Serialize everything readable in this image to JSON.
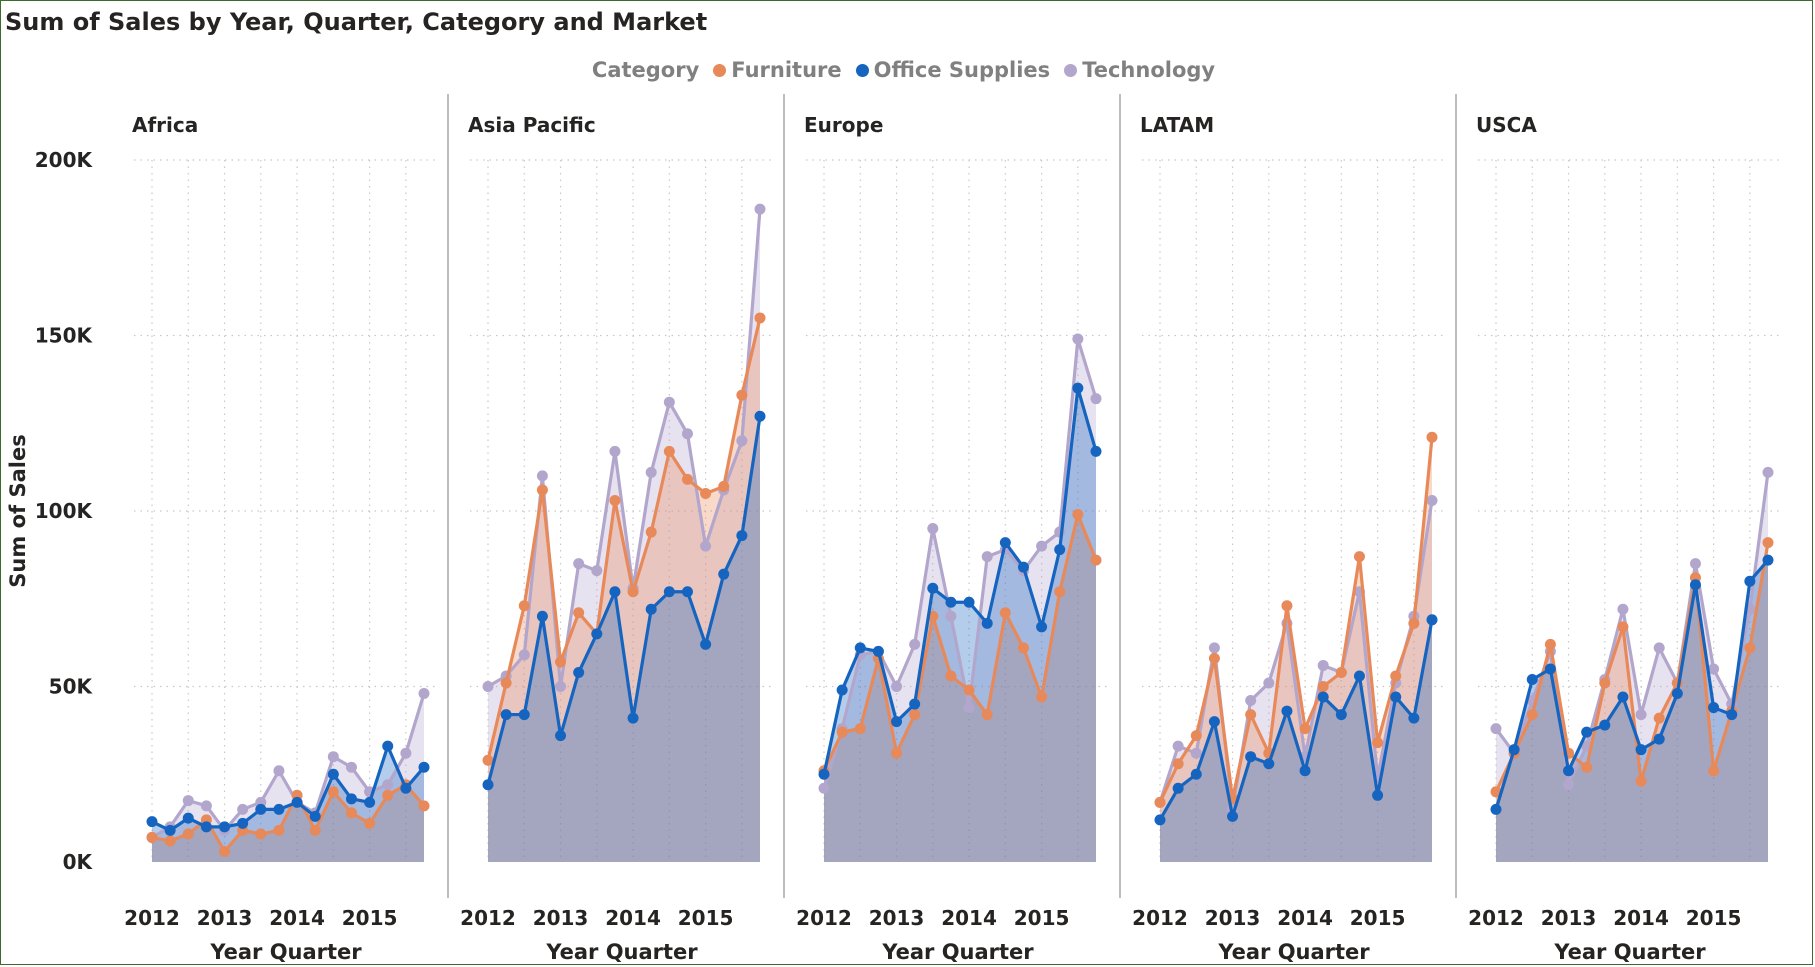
{
  "title": "Sum of Sales by Year, Quarter, Category and Market",
  "chart_data": {
    "type": "area",
    "title": "Sum of Sales by Year, Quarter, Category and Market",
    "xlabel": "Year Quarter",
    "ylabel": "Sum of Sales",
    "ylim": [
      0,
      200000
    ],
    "y_ticks": [
      {
        "value": 0,
        "label": "0K"
      },
      {
        "value": 50000,
        "label": "50K"
      },
      {
        "value": 100000,
        "label": "100K"
      },
      {
        "value": 150000,
        "label": "150K"
      },
      {
        "value": 200000,
        "label": "200K"
      }
    ],
    "x_tick_labels": [
      "2012",
      "2013",
      "2014",
      "2015"
    ],
    "quarters": [
      "2012 Q1",
      "2012 Q2",
      "2012 Q3",
      "2012 Q4",
      "2013 Q1",
      "2013 Q2",
      "2013 Q3",
      "2013 Q4",
      "2014 Q1",
      "2014 Q2",
      "2014 Q3",
      "2014 Q4",
      "2015 Q1",
      "2015 Q2",
      "2015 Q3",
      "2015 Q4"
    ],
    "legend": {
      "title": "Category",
      "position": "top-center"
    },
    "grid": true,
    "series_meta": [
      {
        "name": "Furniture",
        "color": "#E8895A"
      },
      {
        "name": "Office Supplies",
        "color": "#1565C0"
      },
      {
        "name": "Technology",
        "color": "#B3A6CC"
      }
    ],
    "panels": [
      {
        "market": "Africa",
        "series": [
          {
            "name": "Furniture",
            "values": [
              7000,
              6000,
              8000,
              12000,
              3000,
              9000,
              8000,
              9000,
              19000,
              9000,
              20000,
              14000,
              11000,
              19000,
              22000,
              16000
            ]
          },
          {
            "name": "Office Supplies",
            "values": [
              11500,
              9000,
              12500,
              10000,
              10000,
              11000,
              15000,
              15000,
              17000,
              13000,
              25000,
              18000,
              17000,
              33000,
              21000,
              27000
            ]
          },
          {
            "name": "Technology",
            "values": [
              7000,
              10000,
              17500,
              16000,
              9000,
              15000,
              17000,
              26000,
              17000,
              14000,
              30000,
              27000,
              20000,
              22000,
              31000,
              48000
            ]
          }
        ]
      },
      {
        "market": "Asia Pacific",
        "series": [
          {
            "name": "Furniture",
            "values": [
              29000,
              51000,
              73000,
              106000,
              57000,
              71000,
              65000,
              103000,
              77000,
              94000,
              117000,
              109000,
              105000,
              107000,
              133000,
              155000
            ]
          },
          {
            "name": "Office Supplies",
            "values": [
              22000,
              42000,
              42000,
              70000,
              36000,
              54000,
              65000,
              77000,
              41000,
              72000,
              77000,
              77000,
              62000,
              82000,
              93000,
              127000
            ]
          },
          {
            "name": "Technology",
            "values": [
              50000,
              53000,
              59000,
              110000,
              50000,
              85000,
              83000,
              117000,
              78000,
              111000,
              131000,
              122000,
              90000,
              106000,
              120000,
              186000
            ]
          }
        ]
      },
      {
        "market": "Europe",
        "series": [
          {
            "name": "Furniture",
            "values": [
              26000,
              37000,
              38000,
              58000,
              31000,
              42000,
              70000,
              53000,
              49000,
              42000,
              71000,
              61000,
              47000,
              77000,
              99000,
              86000
            ]
          },
          {
            "name": "Office Supplies",
            "values": [
              25000,
              49000,
              61000,
              60000,
              40000,
              45000,
              78000,
              74000,
              74000,
              68000,
              91000,
              84000,
              67000,
              89000,
              135000,
              117000
            ]
          },
          {
            "name": "Technology",
            "values": [
              21000,
              38000,
              59000,
              60000,
              50000,
              62000,
              95000,
              70000,
              44000,
              87000,
              89000,
              83000,
              90000,
              94000,
              149000,
              132000
            ]
          }
        ]
      },
      {
        "market": "LATAM",
        "series": [
          {
            "name": "Furniture",
            "values": [
              17000,
              28000,
              36000,
              58000,
              18000,
              42000,
              31000,
              73000,
              38000,
              50000,
              54000,
              87000,
              34000,
              53000,
              68000,
              121000
            ]
          },
          {
            "name": "Office Supplies",
            "values": [
              12000,
              21000,
              25000,
              40000,
              13000,
              30000,
              28000,
              43000,
              26000,
              47000,
              42000,
              53000,
              19000,
              47000,
              41000,
              69000
            ]
          },
          {
            "name": "Technology",
            "values": [
              17000,
              33000,
              31000,
              61000,
              15000,
              46000,
              51000,
              68000,
              30000,
              56000,
              54000,
              77000,
              24000,
              51000,
              70000,
              103000
            ]
          }
        ]
      },
      {
        "market": "USCA",
        "series": [
          {
            "name": "Furniture",
            "values": [
              20000,
              31000,
              42000,
              62000,
              31000,
              27000,
              51000,
              67000,
              23000,
              41000,
              51000,
              81000,
              26000,
              43000,
              61000,
              91000
            ]
          },
          {
            "name": "Office Supplies",
            "values": [
              15000,
              32000,
              52000,
              55000,
              26000,
              37000,
              39000,
              47000,
              32000,
              35000,
              48000,
              79000,
              44000,
              42000,
              80000,
              86000
            ]
          },
          {
            "name": "Technology",
            "values": [
              38000,
              31000,
              46000,
              60000,
              22000,
              33000,
              52000,
              72000,
              42000,
              61000,
              51000,
              85000,
              55000,
              45000,
              72000,
              111000
            ]
          }
        ]
      }
    ]
  }
}
